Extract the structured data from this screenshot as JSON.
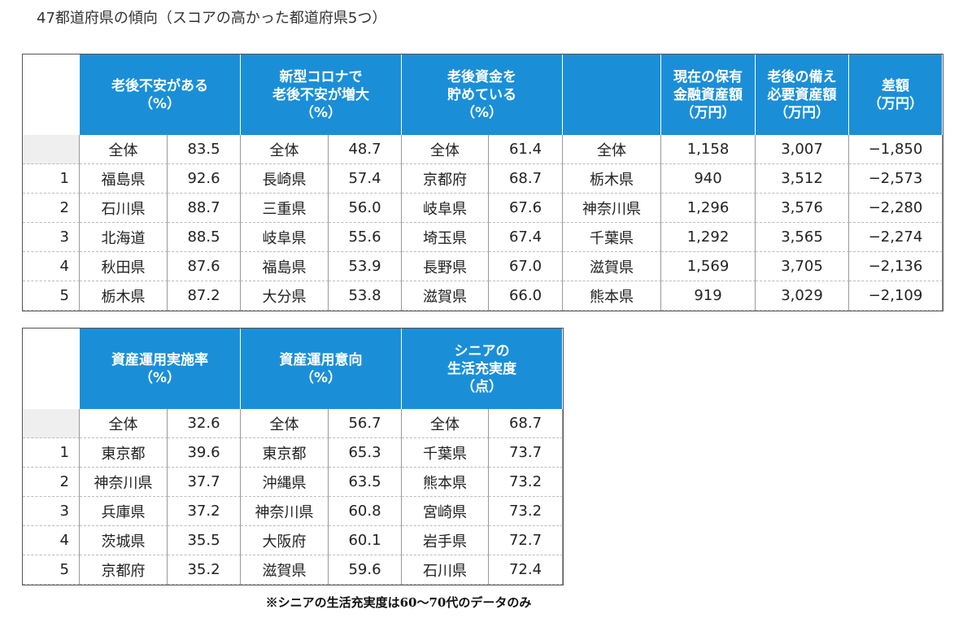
{
  "title": "47都道府県の傾向（スコアの高かった都道府県5つ）",
  "table1": {
    "headers": [
      [
        "老後不安がある",
        "（%）"
      ],
      [
        "新型コロナで",
        "老後不安が増大",
        "（%）"
      ],
      [
        "老後資金を",
        "貯めている",
        "（%）"
      ],
      [
        "現在の保有",
        "金融資産額",
        "（万円）"
      ],
      [
        "老後の備え",
        "必要資産額",
        "（万円）"
      ],
      [
        "差額",
        "（万円）"
      ]
    ],
    "rows": [
      {
        "cells": [
          "全体",
          "83.5",
          "全体",
          "48.7",
          "全体",
          "61.4",
          "全体",
          "1,158",
          "3,007",
          "−1,850"
        ]
      },
      {
        "rank": "1",
        "cells": [
          "福島県",
          "92.6",
          "長崎県",
          "57.4",
          "京都府",
          "68.7",
          "栃木県",
          "940",
          "3,512",
          "−2,573"
        ]
      },
      {
        "rank": "2",
        "cells": [
          "石川県",
          "88.7",
          "三重県",
          "56.0",
          "岐阜県",
          "67.6",
          "神奈川県",
          "1,296",
          "3,576",
          "−2,280"
        ]
      },
      {
        "rank": "3",
        "cells": [
          "北海道",
          "88.5",
          "岐阜県",
          "55.6",
          "埼玉県",
          "67.4",
          "千葉県",
          "1,292",
          "3,565",
          "−2,274"
        ]
      },
      {
        "rank": "4",
        "cells": [
          "秋田県",
          "87.6",
          "福島県",
          "53.9",
          "長野県",
          "67.0",
          "滋賀県",
          "1,569",
          "3,705",
          "−2,136"
        ]
      },
      {
        "rank": "5",
        "cells": [
          "栃木県",
          "87.2",
          "大分県",
          "53.8",
          "滋賀県",
          "66.0",
          "熊本県",
          "919",
          "3,029",
          "−2,109"
        ]
      }
    ]
  },
  "table2": {
    "headers": [
      [
        "資産運用実施率",
        "（%）"
      ],
      [
        "資産運用意向",
        "（%）"
      ],
      [
        "シニアの",
        "生活充実度",
        "（点）"
      ]
    ],
    "rows": [
      {
        "cells": [
          "全体",
          "32.6",
          "全体",
          "56.7",
          "全体",
          "68.7"
        ]
      },
      {
        "rank": "1",
        "cells": [
          "東京都",
          "39.6",
          "東京都",
          "65.3",
          "千葉県",
          "73.7"
        ]
      },
      {
        "rank": "2",
        "cells": [
          "神奈川県",
          "37.7",
          "沖縄県",
          "63.5",
          "熊本県",
          "73.2"
        ]
      },
      {
        "rank": "3",
        "cells": [
          "兵庫県",
          "37.2",
          "神奈川県",
          "60.8",
          "宮崎県",
          "73.2"
        ]
      },
      {
        "rank": "4",
        "cells": [
          "茨城県",
          "35.5",
          "大阪府",
          "60.1",
          "岩手県",
          "72.7"
        ]
      },
      {
        "rank": "5",
        "cells": [
          "京都府",
          "35.2",
          "滋賀県",
          "59.6",
          "石川県",
          "72.4"
        ]
      }
    ]
  },
  "footnote": "※シニアの生活充実度は60～70代のデータのみ"
}
